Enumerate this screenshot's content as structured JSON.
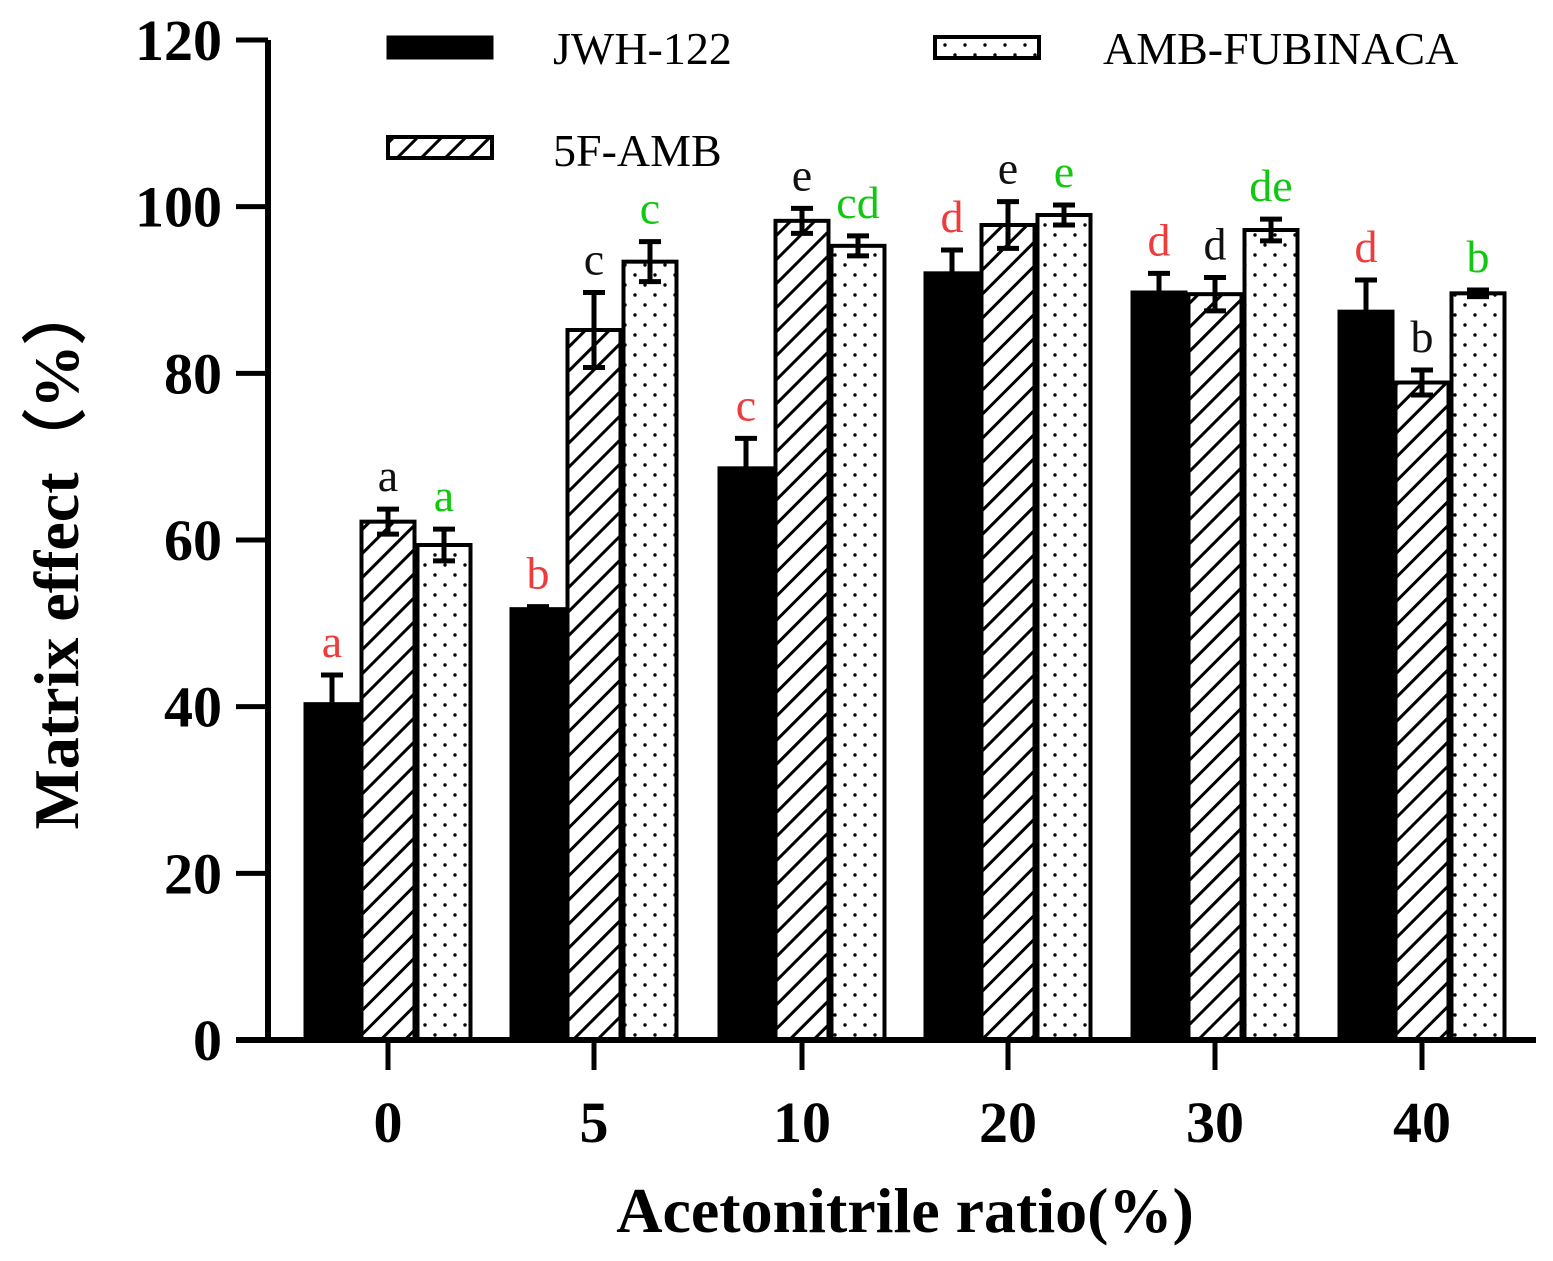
{
  "chart_data": {
    "type": "bar",
    "title": "",
    "xlabel": "Acetonitrile ratio(%)",
    "ylabel": "Matrix effect（%）",
    "ylim": [
      0,
      120
    ],
    "yticks": [
      0,
      20,
      40,
      60,
      80,
      100,
      120
    ],
    "categories": [
      "0",
      "5",
      "10",
      "20",
      "30",
      "40"
    ],
    "legend_position": "top",
    "series": [
      {
        "name": "JWH-122",
        "pattern": "solid",
        "values": [
          40.3,
          51.7,
          68.6,
          92.0,
          89.7,
          87.4
        ],
        "errors": [
          3.5,
          0.3,
          3.6,
          2.8,
          2.3,
          3.8
        ],
        "significance": [
          "a",
          "b",
          "c",
          "d",
          "d",
          "d"
        ],
        "sig_color": "#ee3b3b"
      },
      {
        "name": "5F-AMB",
        "pattern": "hatch",
        "values": [
          62.2,
          85.2,
          98.3,
          97.8,
          89.5,
          78.9
        ],
        "errors": [
          1.5,
          4.5,
          1.5,
          2.8,
          2.0,
          1.5
        ],
        "significance": [
          "a",
          "c",
          "e",
          "e",
          "d",
          "b"
        ],
        "sig_color": "#111111"
      },
      {
        "name": "AMB-FUBINACA",
        "pattern": "dots",
        "values": [
          59.4,
          93.4,
          95.3,
          99.0,
          97.2,
          89.6
        ],
        "errors": [
          1.9,
          2.4,
          1.2,
          1.2,
          1.3,
          0.4
        ],
        "significance": [
          "a",
          "c",
          "cd",
          "e",
          "de",
          "b"
        ],
        "sig_color": "#11c811"
      }
    ]
  }
}
